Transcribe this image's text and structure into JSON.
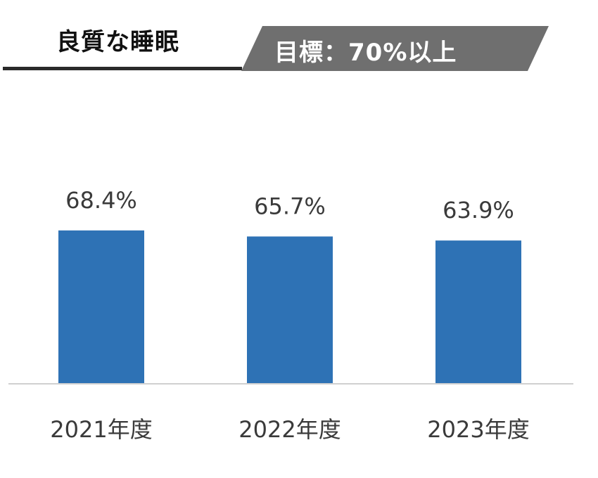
{
  "header": {
    "title": "良質な睡眠",
    "goal": "目標：70%以上"
  },
  "colors": {
    "bar": "#2e72b5",
    "baseline": "#d0d0d0",
    "banner": "#6f6f6f",
    "text": "#3a3a3a"
  },
  "chart_data": {
    "type": "bar",
    "categories": [
      "2021年度",
      "2022年度",
      "2023年度"
    ],
    "values": [
      68.4,
      65.7,
      63.9
    ],
    "labels": [
      "68.4%",
      "65.7%",
      "63.9%"
    ],
    "ylim": [
      0,
      75
    ],
    "grid": false,
    "legend": "none"
  }
}
